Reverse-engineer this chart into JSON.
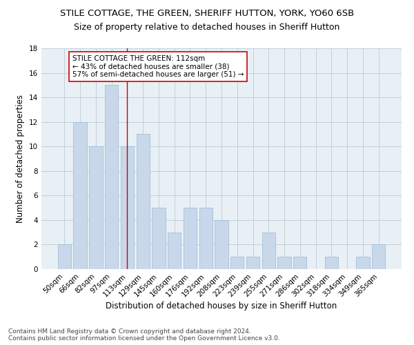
{
  "title": "STILE COTTAGE, THE GREEN, SHERIFF HUTTON, YORK, YO60 6SB",
  "subtitle": "Size of property relative to detached houses in Sheriff Hutton",
  "xlabel": "Distribution of detached houses by size in Sheriff Hutton",
  "ylabel": "Number of detached properties",
  "categories": [
    "50sqm",
    "66sqm",
    "82sqm",
    "97sqm",
    "113sqm",
    "129sqm",
    "145sqm",
    "160sqm",
    "176sqm",
    "192sqm",
    "208sqm",
    "223sqm",
    "239sqm",
    "255sqm",
    "271sqm",
    "286sqm",
    "302sqm",
    "318sqm",
    "334sqm",
    "349sqm",
    "365sqm"
  ],
  "values": [
    2,
    12,
    10,
    15,
    10,
    11,
    5,
    3,
    5,
    5,
    4,
    1,
    1,
    3,
    1,
    1,
    0,
    1,
    0,
    1,
    2
  ],
  "bar_color": "#c8d8ea",
  "bar_edge_color": "#9ab8d0",
  "vline_x_index": 4,
  "vline_color": "#cc0000",
  "annotation_line1": "STILE COTTAGE THE GREEN: 112sqm",
  "annotation_line2": "← 43% of detached houses are smaller (38)",
  "annotation_line3": "57% of semi-detached houses are larger (51) →",
  "annotation_box_color": "#ffffff",
  "annotation_box_edge": "#cc0000",
  "ylim": [
    0,
    18
  ],
  "yticks": [
    0,
    2,
    4,
    6,
    8,
    10,
    12,
    14,
    16,
    18
  ],
  "grid_color": "#c0cfd8",
  "bg_color": "#e8f0f6",
  "footer": "Contains HM Land Registry data © Crown copyright and database right 2024.\nContains public sector information licensed under the Open Government Licence v3.0.",
  "title_fontsize": 9.5,
  "subtitle_fontsize": 9,
  "xlabel_fontsize": 8.5,
  "ylabel_fontsize": 8.5,
  "tick_fontsize": 7.5,
  "annotation_fontsize": 7.5,
  "footer_fontsize": 6.5
}
